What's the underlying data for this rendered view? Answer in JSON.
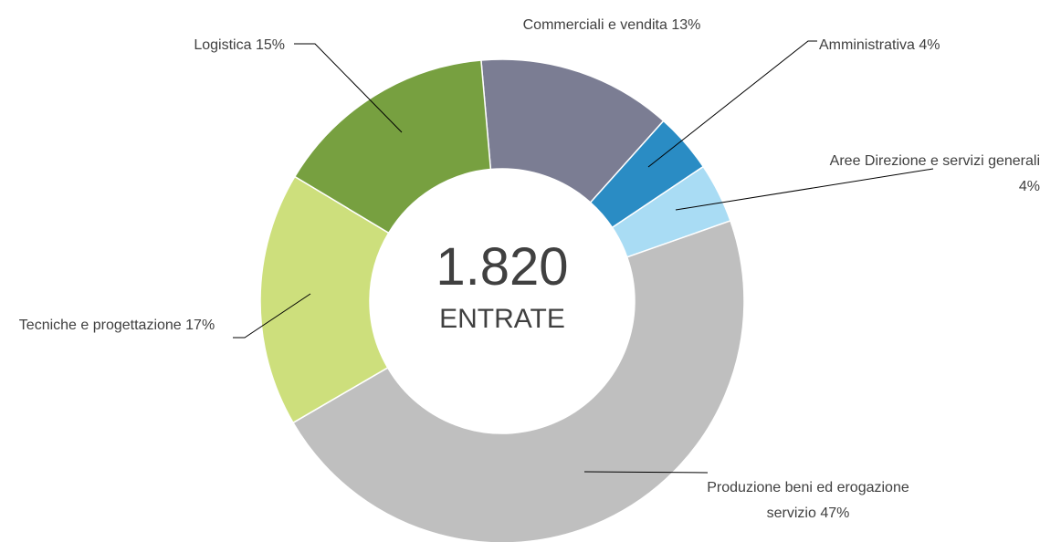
{
  "chart_data": {
    "type": "donut",
    "center_text": "1.820",
    "center_caption": "ENTRATE",
    "categories": [
      "Commerciali e vendita",
      "Amministrativa",
      "Aree Direzione e servizi generali",
      "Produzione beni ed erogazione servizio",
      "Tecniche e progettazione",
      "Logistica"
    ],
    "values": [
      13,
      4,
      4,
      47,
      17,
      15
    ],
    "value_labels": [
      "13%",
      "4%",
      "4%",
      "47%",
      "17%",
      "15%"
    ],
    "colors": [
      "#7b7d93",
      "#2a8cc4",
      "#a9dcf4",
      "#bfbfbf",
      "#cddf7c",
      "#77a040"
    ]
  }
}
